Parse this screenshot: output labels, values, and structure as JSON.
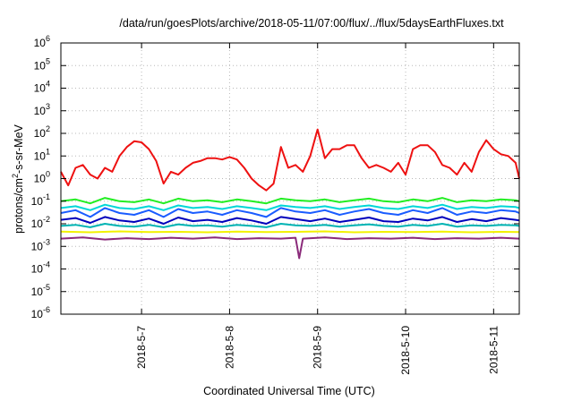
{
  "chart_data": {
    "type": "line",
    "title": "/data/run/goesPlots/archive/2018-05-11/07:00/flux/../flux/5daysEarthFluxes.txt",
    "xlabel": "Coordinated Universal Time (UTC)",
    "ylabel": {
      "pre": "protons/cm",
      "sup": "2",
      "post": "-s-sr-MeV"
    },
    "y_scale": "log",
    "ylim": [
      1e-06,
      1000000.0
    ],
    "xlim": [
      "2018-05-06 02:00",
      "2018-05-11 07:00"
    ],
    "x_ticks": [
      "2018-5-7",
      "2018-5-8",
      "2018-5-9",
      "2018-5-10",
      "2018-5-11"
    ],
    "x_tick_dates": [
      "2018-05-07 00:00",
      "2018-05-08 00:00",
      "2018-05-09 00:00",
      "2018-05-10 00:00",
      "2018-05-11 00:00"
    ],
    "y_ticks": [
      {
        "base": "10",
        "exp": "-6"
      },
      {
        "base": "10",
        "exp": "-5"
      },
      {
        "base": "10",
        "exp": "-4"
      },
      {
        "base": "10",
        "exp": "-3"
      },
      {
        "base": "10",
        "exp": "-2"
      },
      {
        "base": "10",
        "exp": "-1"
      },
      {
        "base": "10",
        "exp": "0"
      },
      {
        "base": "10",
        "exp": "1"
      },
      {
        "base": "10",
        "exp": "2"
      },
      {
        "base": "10",
        "exp": "3"
      },
      {
        "base": "10",
        "exp": "4"
      },
      {
        "base": "10",
        "exp": "5"
      },
      {
        "base": "10",
        "exp": "6"
      }
    ],
    "grid": true,
    "legend": "none",
    "series": [
      {
        "color": "#ee1111",
        "x": [
          "2018-05-06 02:00",
          "2018-05-06 04:00",
          "2018-05-06 06:00",
          "2018-05-06 08:00",
          "2018-05-06 10:00",
          "2018-05-06 12:00",
          "2018-05-06 14:00",
          "2018-05-06 16:00",
          "2018-05-06 18:00",
          "2018-05-06 20:00",
          "2018-05-06 22:00",
          "2018-05-07 00:00",
          "2018-05-07 02:00",
          "2018-05-07 04:00",
          "2018-05-07 06:00",
          "2018-05-07 08:00",
          "2018-05-07 10:00",
          "2018-05-07 12:00",
          "2018-05-07 14:00",
          "2018-05-07 16:00",
          "2018-05-07 18:00",
          "2018-05-07 20:00",
          "2018-05-07 22:00",
          "2018-05-08 00:00",
          "2018-05-08 02:00",
          "2018-05-08 04:00",
          "2018-05-08 06:00",
          "2018-05-08 08:00",
          "2018-05-08 10:00",
          "2018-05-08 12:00",
          "2018-05-08 14:00",
          "2018-05-08 16:00",
          "2018-05-08 18:00",
          "2018-05-08 20:00",
          "2018-05-08 22:00",
          "2018-05-09 00:00",
          "2018-05-09 02:00",
          "2018-05-09 04:00",
          "2018-05-09 06:00",
          "2018-05-09 08:00",
          "2018-05-09 10:00",
          "2018-05-09 12:00",
          "2018-05-09 14:00",
          "2018-05-09 16:00",
          "2018-05-09 18:00",
          "2018-05-09 20:00",
          "2018-05-09 22:00",
          "2018-05-10 00:00",
          "2018-05-10 02:00",
          "2018-05-10 04:00",
          "2018-05-10 06:00",
          "2018-05-10 08:00",
          "2018-05-10 10:00",
          "2018-05-10 12:00",
          "2018-05-10 14:00",
          "2018-05-10 16:00",
          "2018-05-10 18:00",
          "2018-05-10 20:00",
          "2018-05-10 22:00",
          "2018-05-11 00:00",
          "2018-05-11 02:00",
          "2018-05-11 04:00",
          "2018-05-11 06:00",
          "2018-05-11 07:00"
        ],
        "values": [
          2,
          0.5,
          3,
          4,
          1.5,
          1,
          3,
          2,
          10,
          25,
          45,
          40,
          20,
          6,
          0.6,
          2,
          1.5,
          3,
          5,
          6,
          8,
          8,
          7,
          9,
          7,
          3,
          1,
          0.5,
          0.3,
          0.6,
          25,
          3,
          4,
          2,
          10,
          150,
          8,
          20,
          20,
          30,
          30,
          8,
          3,
          4,
          3,
          2,
          5,
          1.5,
          20,
          30,
          30,
          15,
          4,
          3,
          1.5,
          5,
          2,
          15,
          50,
          20,
          12,
          10,
          5,
          1
        ]
      },
      {
        "color": "#22ee22",
        "x": [
          "2018-05-06 02:00",
          "2018-05-06 06:00",
          "2018-05-06 10:00",
          "2018-05-06 14:00",
          "2018-05-06 18:00",
          "2018-05-06 22:00",
          "2018-05-07 02:00",
          "2018-05-07 06:00",
          "2018-05-07 10:00",
          "2018-05-07 14:00",
          "2018-05-07 18:00",
          "2018-05-07 22:00",
          "2018-05-08 02:00",
          "2018-05-08 06:00",
          "2018-05-08 10:00",
          "2018-05-08 14:00",
          "2018-05-08 18:00",
          "2018-05-08 22:00",
          "2018-05-09 02:00",
          "2018-05-09 06:00",
          "2018-05-09 10:00",
          "2018-05-09 14:00",
          "2018-05-09 18:00",
          "2018-05-09 22:00",
          "2018-05-10 02:00",
          "2018-05-10 06:00",
          "2018-05-10 10:00",
          "2018-05-10 14:00",
          "2018-05-10 18:00",
          "2018-05-10 22:00",
          "2018-05-11 02:00",
          "2018-05-11 06:00",
          "2018-05-11 07:00"
        ],
        "values": [
          0.1,
          0.12,
          0.08,
          0.14,
          0.1,
          0.09,
          0.12,
          0.08,
          0.13,
          0.1,
          0.11,
          0.09,
          0.12,
          0.1,
          0.08,
          0.13,
          0.11,
          0.1,
          0.12,
          0.09,
          0.11,
          0.13,
          0.1,
          0.09,
          0.12,
          0.1,
          0.14,
          0.09,
          0.11,
          0.1,
          0.12,
          0.11,
          0.1
        ]
      },
      {
        "color": "#00d7d7",
        "x": [
          "2018-05-06 02:00",
          "2018-05-06 06:00",
          "2018-05-06 10:00",
          "2018-05-06 14:00",
          "2018-05-06 18:00",
          "2018-05-06 22:00",
          "2018-05-07 02:00",
          "2018-05-07 06:00",
          "2018-05-07 10:00",
          "2018-05-07 14:00",
          "2018-05-07 18:00",
          "2018-05-07 22:00",
          "2018-05-08 02:00",
          "2018-05-08 06:00",
          "2018-05-08 10:00",
          "2018-05-08 14:00",
          "2018-05-08 18:00",
          "2018-05-08 22:00",
          "2018-05-09 02:00",
          "2018-05-09 06:00",
          "2018-05-09 10:00",
          "2018-05-09 14:00",
          "2018-05-09 18:00",
          "2018-05-09 22:00",
          "2018-05-10 02:00",
          "2018-05-10 06:00",
          "2018-05-10 10:00",
          "2018-05-10 14:00",
          "2018-05-10 18:00",
          "2018-05-10 22:00",
          "2018-05-11 02:00",
          "2018-05-11 06:00",
          "2018-05-11 07:00"
        ],
        "values": [
          0.05,
          0.06,
          0.04,
          0.07,
          0.05,
          0.045,
          0.06,
          0.04,
          0.065,
          0.05,
          0.055,
          0.045,
          0.06,
          0.05,
          0.04,
          0.065,
          0.055,
          0.05,
          0.06,
          0.045,
          0.055,
          0.065,
          0.05,
          0.045,
          0.06,
          0.05,
          0.07,
          0.045,
          0.055,
          0.05,
          0.06,
          0.055,
          0.05
        ]
      },
      {
        "color": "#1a5cff",
        "x": [
          "2018-05-06 02:00",
          "2018-05-06 06:00",
          "2018-05-06 10:00",
          "2018-05-06 14:00",
          "2018-05-06 18:00",
          "2018-05-06 22:00",
          "2018-05-07 02:00",
          "2018-05-07 06:00",
          "2018-05-07 10:00",
          "2018-05-07 14:00",
          "2018-05-07 18:00",
          "2018-05-07 22:00",
          "2018-05-08 02:00",
          "2018-05-08 06:00",
          "2018-05-08 10:00",
          "2018-05-08 14:00",
          "2018-05-08 18:00",
          "2018-05-08 22:00",
          "2018-05-09 02:00",
          "2018-05-09 06:00",
          "2018-05-09 10:00",
          "2018-05-09 14:00",
          "2018-05-09 18:00",
          "2018-05-09 22:00",
          "2018-05-10 02:00",
          "2018-05-10 06:00",
          "2018-05-10 10:00",
          "2018-05-10 14:00",
          "2018-05-10 18:00",
          "2018-05-10 22:00",
          "2018-05-11 02:00",
          "2018-05-11 06:00",
          "2018-05-11 07:00"
        ],
        "values": [
          0.03,
          0.04,
          0.02,
          0.05,
          0.03,
          0.025,
          0.04,
          0.02,
          0.045,
          0.03,
          0.035,
          0.025,
          0.04,
          0.03,
          0.02,
          0.05,
          0.035,
          0.03,
          0.04,
          0.025,
          0.035,
          0.045,
          0.03,
          0.025,
          0.04,
          0.03,
          0.05,
          0.025,
          0.035,
          0.03,
          0.04,
          0.035,
          0.03
        ]
      },
      {
        "color": "#0000bb",
        "x": [
          "2018-05-06 02:00",
          "2018-05-06 06:00",
          "2018-05-06 10:00",
          "2018-05-06 14:00",
          "2018-05-06 18:00",
          "2018-05-06 22:00",
          "2018-05-07 02:00",
          "2018-05-07 06:00",
          "2018-05-07 10:00",
          "2018-05-07 14:00",
          "2018-05-07 18:00",
          "2018-05-07 22:00",
          "2018-05-08 02:00",
          "2018-05-08 06:00",
          "2018-05-08 10:00",
          "2018-05-08 14:00",
          "2018-05-08 18:00",
          "2018-05-08 22:00",
          "2018-05-09 02:00",
          "2018-05-09 06:00",
          "2018-05-09 10:00",
          "2018-05-09 14:00",
          "2018-05-09 18:00",
          "2018-05-09 22:00",
          "2018-05-10 02:00",
          "2018-05-10 06:00",
          "2018-05-10 10:00",
          "2018-05-10 14:00",
          "2018-05-10 18:00",
          "2018-05-10 22:00",
          "2018-05-11 02:00",
          "2018-05-11 06:00",
          "2018-05-11 07:00"
        ],
        "values": [
          0.015,
          0.018,
          0.011,
          0.02,
          0.014,
          0.012,
          0.017,
          0.01,
          0.019,
          0.013,
          0.015,
          0.012,
          0.018,
          0.014,
          0.01,
          0.02,
          0.016,
          0.013,
          0.017,
          0.012,
          0.015,
          0.019,
          0.013,
          0.012,
          0.017,
          0.014,
          0.02,
          0.012,
          0.016,
          0.013,
          0.018,
          0.015,
          0.014
        ]
      },
      {
        "color": "#00b3b3",
        "x": [
          "2018-05-06 02:00",
          "2018-05-06 06:00",
          "2018-05-06 10:00",
          "2018-05-06 14:00",
          "2018-05-06 18:00",
          "2018-05-06 22:00",
          "2018-05-07 02:00",
          "2018-05-07 06:00",
          "2018-05-07 10:00",
          "2018-05-07 14:00",
          "2018-05-07 18:00",
          "2018-05-07 22:00",
          "2018-05-08 02:00",
          "2018-05-08 06:00",
          "2018-05-08 10:00",
          "2018-05-08 14:00",
          "2018-05-08 18:00",
          "2018-05-08 22:00",
          "2018-05-09 02:00",
          "2018-05-09 06:00",
          "2018-05-09 10:00",
          "2018-05-09 14:00",
          "2018-05-09 18:00",
          "2018-05-09 22:00",
          "2018-05-10 02:00",
          "2018-05-10 06:00",
          "2018-05-10 10:00",
          "2018-05-10 14:00",
          "2018-05-10 18:00",
          "2018-05-10 22:00",
          "2018-05-11 02:00",
          "2018-05-11 06:00",
          "2018-05-11 07:00"
        ],
        "values": [
          0.008,
          0.009,
          0.007,
          0.01,
          0.008,
          0.0075,
          0.009,
          0.007,
          0.0095,
          0.008,
          0.0085,
          0.0075,
          0.009,
          0.008,
          0.007,
          0.01,
          0.0085,
          0.008,
          0.009,
          0.0075,
          0.0085,
          0.0095,
          0.008,
          0.0075,
          0.009,
          0.008,
          0.01,
          0.0075,
          0.0085,
          0.008,
          0.009,
          0.0085,
          0.008
        ]
      },
      {
        "color": "#f2f200",
        "x": [
          "2018-05-06 02:00",
          "2018-05-06 10:00",
          "2018-05-06 18:00",
          "2018-05-07 02:00",
          "2018-05-07 10:00",
          "2018-05-07 18:00",
          "2018-05-08 02:00",
          "2018-05-08 10:00",
          "2018-05-08 18:00",
          "2018-05-09 02:00",
          "2018-05-09 10:00",
          "2018-05-09 18:00",
          "2018-05-10 02:00",
          "2018-05-10 10:00",
          "2018-05-10 18:00",
          "2018-05-11 02:00",
          "2018-05-11 07:00"
        ],
        "values": [
          0.0045,
          0.0042,
          0.0046,
          0.0043,
          0.0044,
          0.0042,
          0.0045,
          0.0043,
          0.0044,
          0.0046,
          0.0042,
          0.0044,
          0.0043,
          0.0045,
          0.0042,
          0.0044,
          0.0043
        ]
      },
      {
        "color": "#8a2a7a",
        "x": [
          "2018-05-06 02:00",
          "2018-05-06 08:00",
          "2018-05-06 14:00",
          "2018-05-06 20:00",
          "2018-05-07 02:00",
          "2018-05-07 08:00",
          "2018-05-07 14:00",
          "2018-05-07 20:00",
          "2018-05-08 02:00",
          "2018-05-08 08:00",
          "2018-05-08 14:00",
          "2018-05-08 18:00",
          "2018-05-08 19:00",
          "2018-05-08 20:00",
          "2018-05-09 02:00",
          "2018-05-09 08:00",
          "2018-05-09 14:00",
          "2018-05-09 20:00",
          "2018-05-10 02:00",
          "2018-05-10 08:00",
          "2018-05-10 14:00",
          "2018-05-10 20:00",
          "2018-05-11 02:00",
          "2018-05-11 07:00"
        ],
        "values": [
          0.0022,
          0.0025,
          0.002,
          0.0023,
          0.0021,
          0.0024,
          0.0022,
          0.0025,
          0.0021,
          0.0023,
          0.0022,
          0.0024,
          0.0003,
          0.0022,
          0.0025,
          0.0021,
          0.0023,
          0.0022,
          0.0024,
          0.0021,
          0.0023,
          0.0022,
          0.0024,
          0.0022
        ]
      }
    ]
  }
}
